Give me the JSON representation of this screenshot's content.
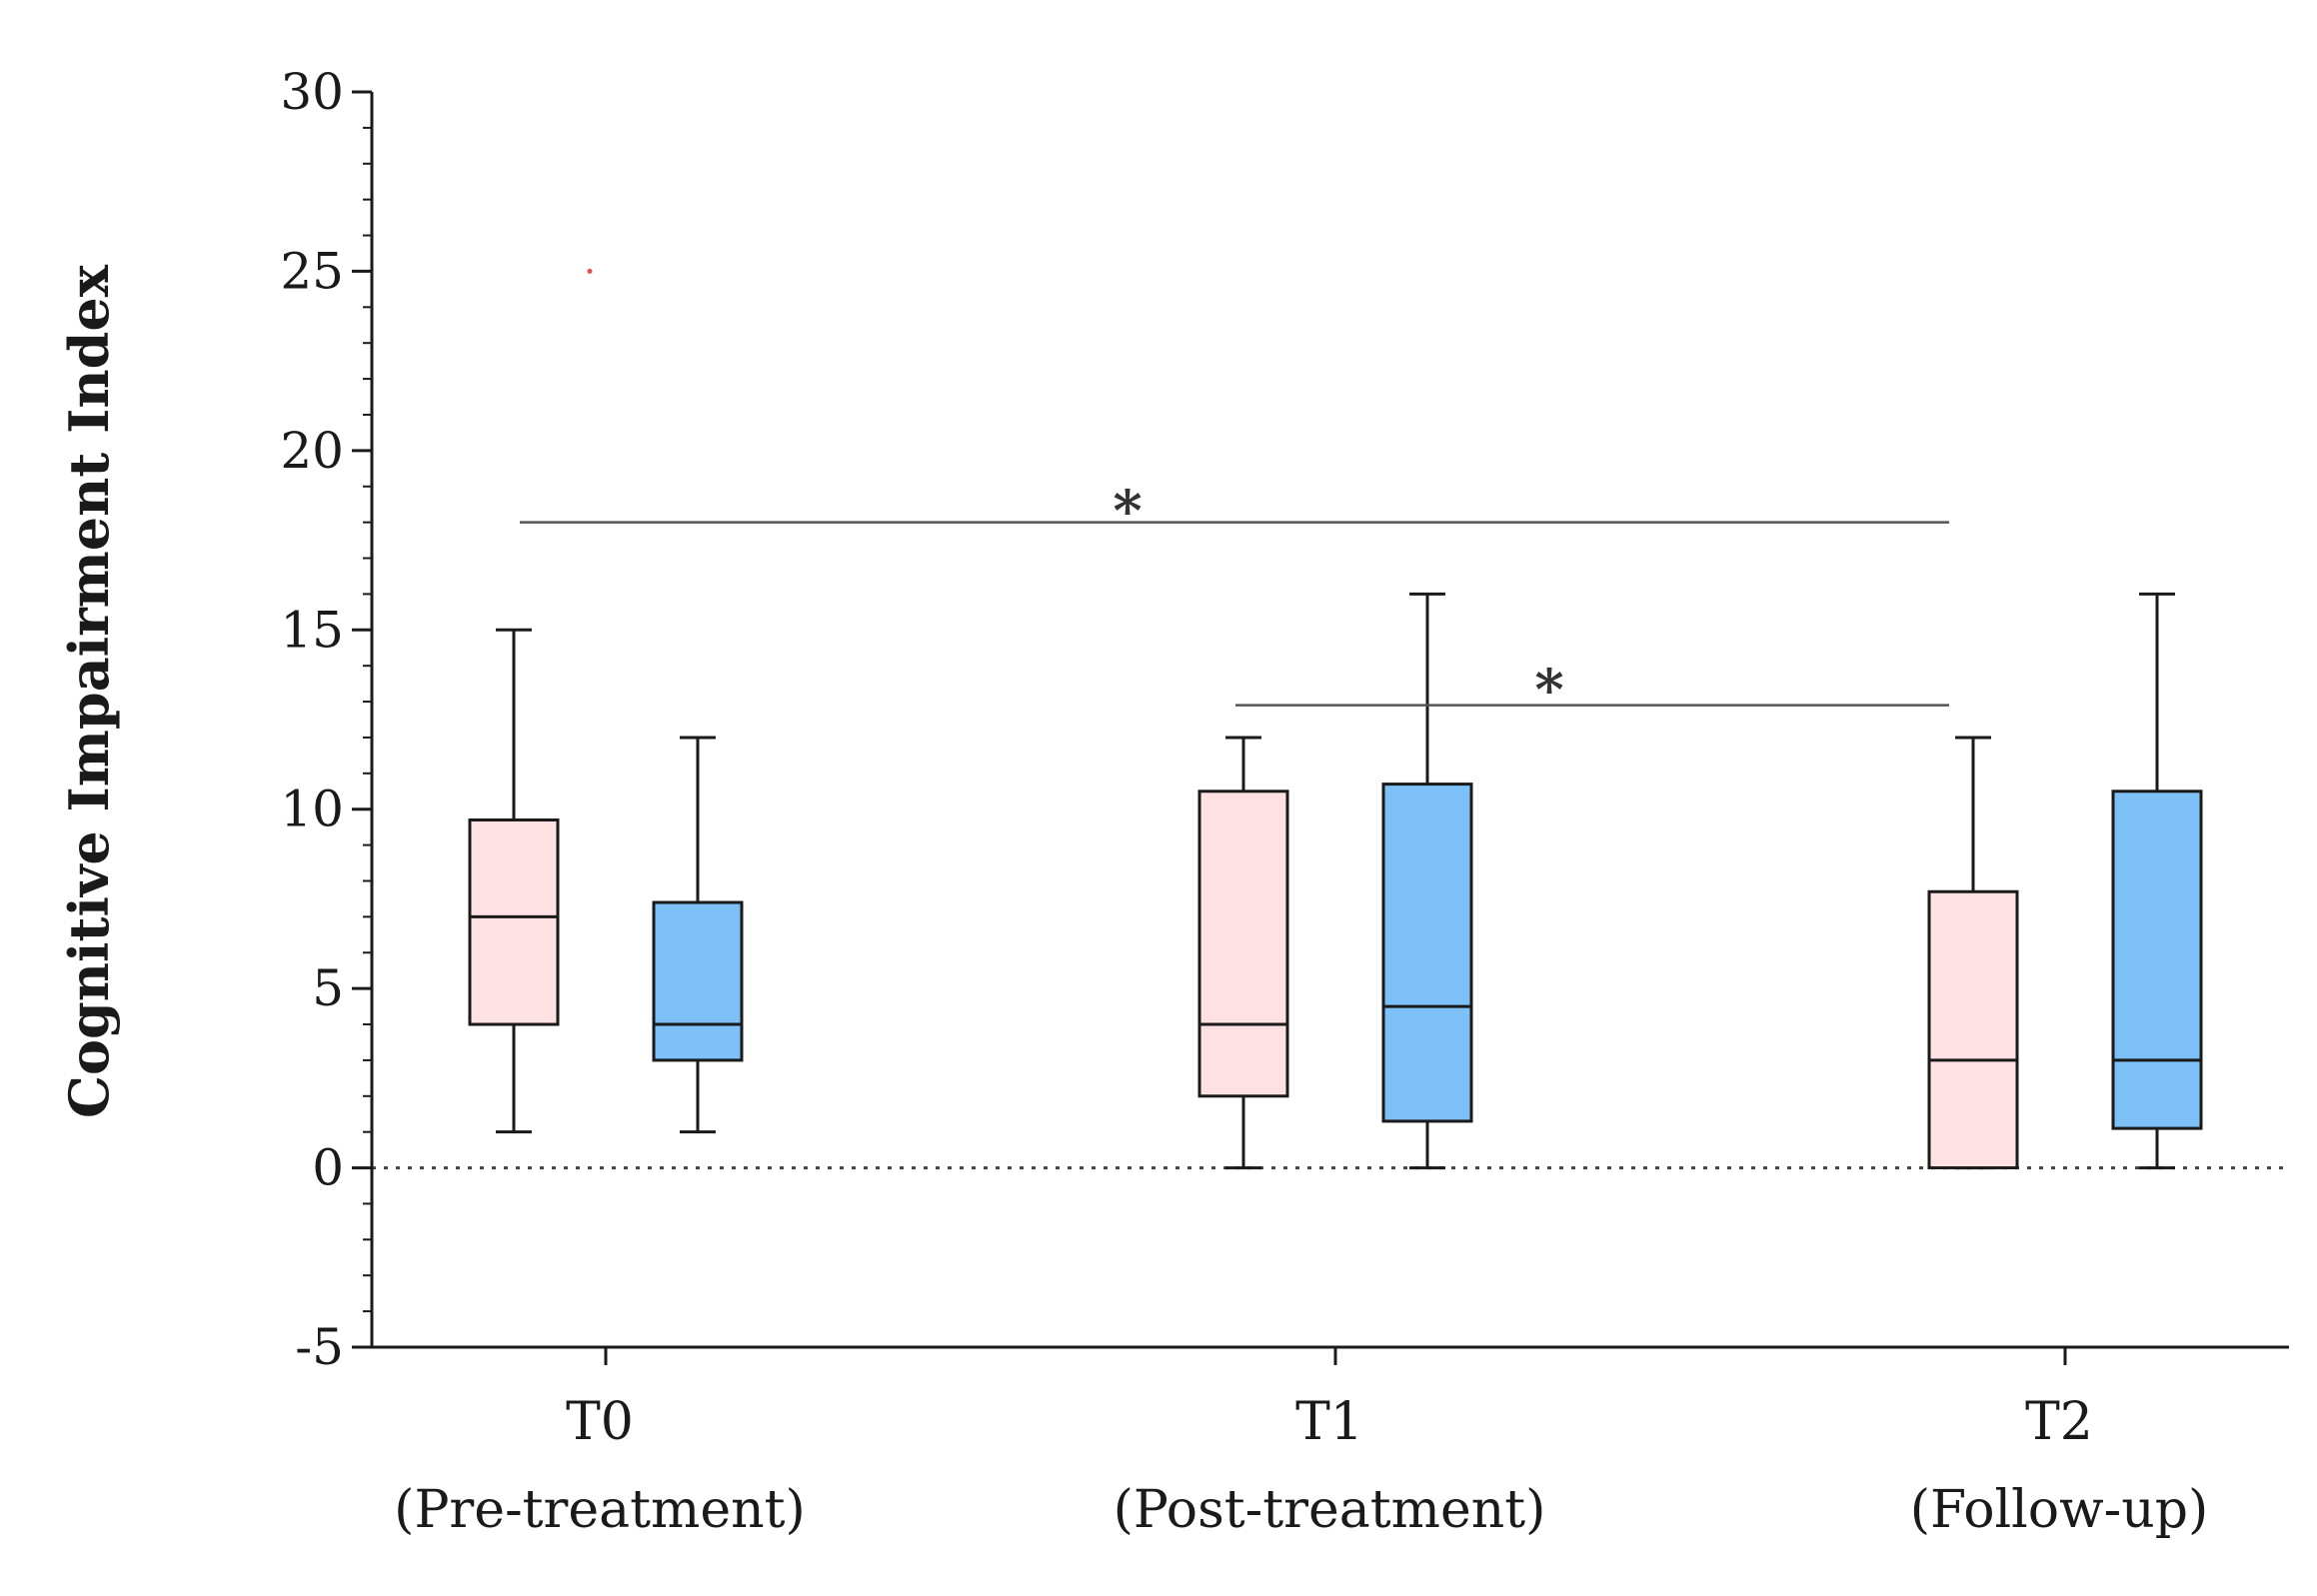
{
  "chart_data": {
    "type": "box",
    "ylabel": "Cognitive Impairment Index",
    "ylim": [
      -5,
      30
    ],
    "yticks": [
      -5,
      0,
      5,
      10,
      15,
      20,
      25,
      30
    ],
    "reference_line": 0,
    "categories": [
      {
        "label": "T0",
        "sublabel": "(Pre-treatment)"
      },
      {
        "label": "T1",
        "sublabel": "(Post-treatment)"
      },
      {
        "label": "T2",
        "sublabel": "(Follow-up)"
      }
    ],
    "colors": {
      "pink_group": "#ffe0e3",
      "blue_group": "#7cc0f7",
      "outlier": "#e05050",
      "line": "#1a1a1a"
    },
    "series": [
      {
        "color_key": "pink_group",
        "boxes": [
          {
            "min": 1,
            "q1": 4,
            "median": 7,
            "q3": 9.7,
            "max": 15
          },
          {
            "min": 0,
            "q1": 2,
            "median": 4,
            "q3": 10.5,
            "max": 12
          },
          {
            "min": 0,
            "q1": 0,
            "median": 3,
            "q3": 7.7,
            "max": 12
          }
        ],
        "outliers": [
          {
            "category": 0,
            "y": 25
          }
        ]
      },
      {
        "color_key": "blue_group",
        "boxes": [
          {
            "min": 1,
            "q1": 3,
            "median": 4,
            "q3": 7.4,
            "max": 12
          },
          {
            "min": 0,
            "q1": 1.3,
            "median": 4.5,
            "q3": 10.7,
            "max": 16
          },
          {
            "min": 0,
            "q1": 1.1,
            "median": 3,
            "q3": 10.5,
            "max": 16
          }
        ],
        "outliers": []
      }
    ],
    "significance": [
      {
        "from_category": 0,
        "to_category": 2,
        "y": 18,
        "label": "*"
      },
      {
        "from_category": 1,
        "to_category": 2,
        "y": 12.9,
        "label": "*"
      }
    ]
  }
}
